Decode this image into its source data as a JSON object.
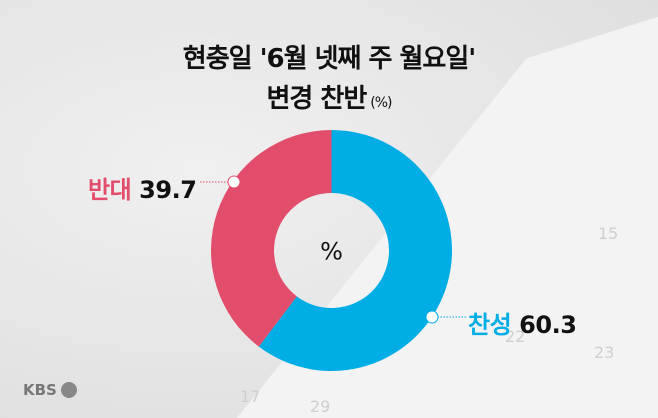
{
  "title_line1": "현충일 '6월 넷째 주 월요일'",
  "title_line2": "변경 찬반",
  "unit": "(%)",
  "center_label": "%",
  "logo": "KBS",
  "background_numbers": [
    "15",
    "22",
    "23",
    "17",
    "29"
  ],
  "chart_data": {
    "type": "pie",
    "donut": true,
    "title": "현충일 '6월 넷째 주 월요일' 변경 찬반 (%)",
    "categories": [
      "찬성",
      "반대"
    ],
    "values": [
      60.3,
      39.7
    ],
    "colors": [
      "#00ade5",
      "#e24d6b"
    ],
    "start": "top",
    "legend": "none"
  }
}
